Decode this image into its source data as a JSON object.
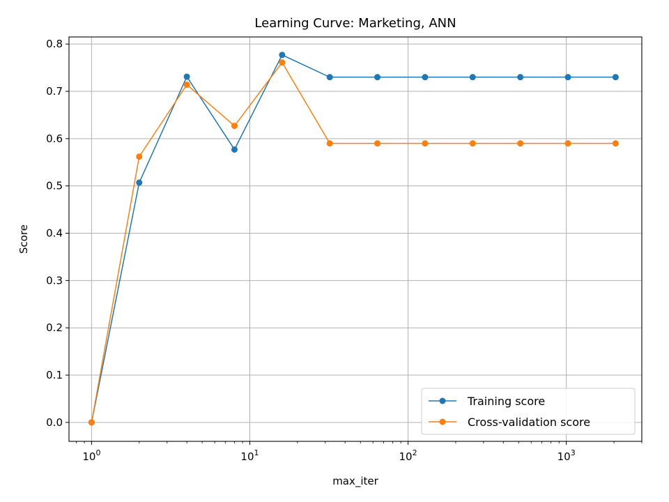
{
  "chart_data": {
    "type": "line",
    "title": "Learning Curve: Marketing, ANN",
    "xlabel": "max_iter",
    "ylabel": "Score",
    "xscale": "log",
    "xlim": [
      0.72,
      3000
    ],
    "ylim": [
      -0.04,
      0.815
    ],
    "grid": true,
    "legend_position": "lower-right",
    "x": [
      1,
      2,
      4,
      8,
      16,
      32,
      64,
      128,
      256,
      512,
      1024,
      2048
    ],
    "series": [
      {
        "name": "Training score",
        "color": "#1f77b4",
        "values": [
          0.0,
          0.507,
          0.731,
          0.577,
          0.777,
          0.73,
          0.73,
          0.73,
          0.73,
          0.73,
          0.73,
          0.73
        ]
      },
      {
        "name": "Cross-validation score",
        "color": "#ff7f0e",
        "values": [
          0.0,
          0.562,
          0.714,
          0.627,
          0.761,
          0.59,
          0.59,
          0.59,
          0.59,
          0.59,
          0.59,
          0.59
        ]
      }
    ],
    "yticks": [
      "0.0",
      "0.1",
      "0.2",
      "0.3",
      "0.4",
      "0.5",
      "0.6",
      "0.7",
      "0.8"
    ],
    "xticks": [
      {
        "value": 1,
        "base": "10",
        "exp": "0"
      },
      {
        "value": 10,
        "base": "10",
        "exp": "1"
      },
      {
        "value": 100,
        "base": "10",
        "exp": "2"
      },
      {
        "value": 1000,
        "base": "10",
        "exp": "3"
      }
    ]
  }
}
